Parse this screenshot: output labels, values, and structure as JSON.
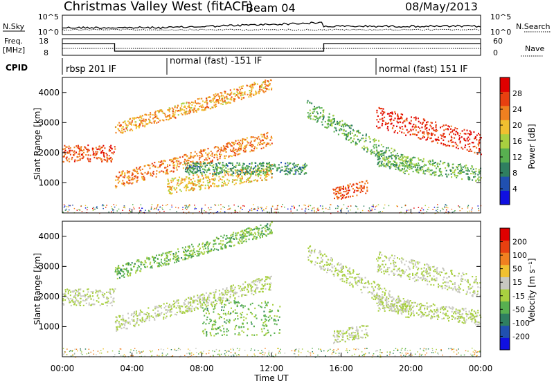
{
  "header": {
    "station": "Christmas Valley West (fitACF)",
    "beam": "Beam 04",
    "date": "08/May/2013"
  },
  "top_panels": {
    "nsky_label": "N.Sky",
    "nsky_ticks": [
      "10^5",
      "10^0"
    ],
    "nsearch_label": "N.Search",
    "nsearch_ticks": [
      "10^5",
      "10^0"
    ],
    "freq_label_line1": "Freq.",
    "freq_label_line2": "[MHz]",
    "freq_ticks": [
      "18",
      "8"
    ],
    "nave_label": "Nave",
    "nave_ticks": [
      "60",
      "0"
    ],
    "cpid_label": "CPID",
    "cpid_segments": [
      {
        "label": "rbsp 201 IF",
        "start_hour": 0
      },
      {
        "label": "normal (fast) -151 IF",
        "start_hour": 6
      },
      {
        "label": "normal (fast) 151 IF",
        "start_hour": 18
      }
    ]
  },
  "colors": {
    "power_scale": [
      "#1010e0",
      "#2050b0",
      "#2f7f60",
      "#58b050",
      "#a8d040",
      "#f0c030",
      "#f08020",
      "#e84010",
      "#e00000"
    ],
    "velocity_scale": [
      "#1010e0",
      "#2050b0",
      "#2f7f60",
      "#58b050",
      "#a8d040",
      "#c8c8c0",
      "#f0c030",
      "#f08020",
      "#e84010",
      "#e00000"
    ]
  },
  "chart_data": [
    {
      "type": "heatmap",
      "name": "power",
      "xlabel": "",
      "ylabel": "Slant Range [km]",
      "xlim": [
        0,
        24
      ],
      "ylim": [
        0,
        4500
      ],
      "yticks": [
        "1000",
        "2000",
        "3000",
        "4000"
      ],
      "colorbar_label": "Power [dB]",
      "colorbar_ticks": [
        "4",
        "8",
        "12",
        "16",
        "20",
        "24",
        "28"
      ],
      "colorbar_range": [
        0,
        30
      ],
      "bands": [
        {
          "x": [
            0,
            3
          ],
          "y": [
            2000,
            2000
          ],
          "width": 280,
          "value": 24
        },
        {
          "x": [
            3,
            12
          ],
          "y": [
            1100,
            2500
          ],
          "width": 250,
          "value": 22
        },
        {
          "x": [
            3,
            12
          ],
          "y": [
            2800,
            4300
          ],
          "width": 220,
          "value": 20
        },
        {
          "x": [
            6,
            12
          ],
          "y": [
            900,
            1400
          ],
          "width": 260,
          "value": 18
        },
        {
          "x": [
            7,
            14
          ],
          "y": [
            1500,
            1500
          ],
          "width": 200,
          "value": 10
        },
        {
          "x": [
            14,
            20
          ],
          "y": [
            3500,
            1500
          ],
          "width": 300,
          "value": 12
        },
        {
          "x": [
            15.5,
            17.5
          ],
          "y": [
            650,
            900
          ],
          "width": 220,
          "value": 24
        },
        {
          "x": [
            18,
            24
          ],
          "y": [
            3200,
            2300
          ],
          "width": 350,
          "value": 26
        },
        {
          "x": [
            18,
            24
          ],
          "y": [
            1800,
            1300
          ],
          "width": 250,
          "value": 12
        }
      ]
    },
    {
      "type": "heatmap",
      "name": "velocity",
      "xlabel": "Time UT",
      "ylabel": "Slant Range [km]",
      "xlim": [
        0,
        24
      ],
      "ylim": [
        0,
        4500
      ],
      "xticks": [
        "00:00",
        "04:00",
        "08:00",
        "12:00",
        "16:00",
        "20:00",
        "00:00"
      ],
      "yticks": [
        "1000",
        "2000",
        "3000",
        "4000"
      ],
      "colorbar_label": "Velocity [m s⁻¹]",
      "colorbar_ticks": [
        "200",
        "100",
        "50",
        "15",
        "-15",
        "-50",
        "-100",
        "-200"
      ],
      "colorbar_range": [
        -250,
        250
      ],
      "bands": [
        {
          "x": [
            0,
            3
          ],
          "y": [
            2000,
            2000
          ],
          "width": 280,
          "value": 0
        },
        {
          "x": [
            3,
            12
          ],
          "y": [
            1100,
            2500
          ],
          "width": 250,
          "value": 0
        },
        {
          "x": [
            3,
            12
          ],
          "y": [
            2800,
            4300
          ],
          "width": 220,
          "value": -60
        },
        {
          "x": [
            8,
            12.5
          ],
          "y": [
            1300,
            1300
          ],
          "width": 600,
          "value": -60
        },
        {
          "x": [
            14,
            20
          ],
          "y": [
            3500,
            1500
          ],
          "width": 300,
          "value": 0
        },
        {
          "x": [
            15.5,
            17.5
          ],
          "y": [
            650,
            900
          ],
          "width": 220,
          "value": 0
        },
        {
          "x": [
            18,
            24
          ],
          "y": [
            3200,
            2300
          ],
          "width": 350,
          "value": 0
        },
        {
          "x": [
            18,
            24
          ],
          "y": [
            1800,
            1300
          ],
          "width": 250,
          "value": 0
        }
      ]
    }
  ]
}
